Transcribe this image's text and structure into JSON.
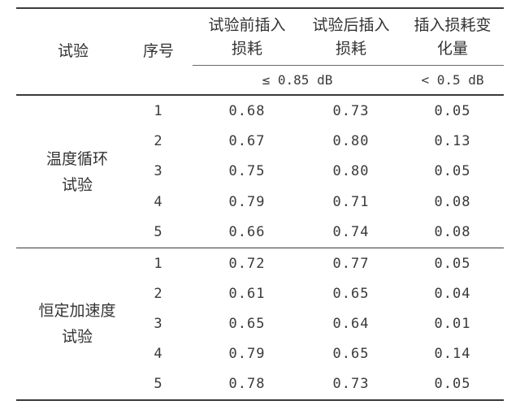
{
  "table": {
    "headers": {
      "test": "试验",
      "seq": "序号",
      "before_l1": "试验前插入",
      "before_l2": "损耗",
      "after_l1": "试验后插入",
      "after_l2": "损耗",
      "change_l1": "插入损耗变",
      "change_l2": "化量",
      "spec_loss": "≤ 0.85 dB",
      "spec_change": "< 0.5 dB"
    },
    "groups": [
      {
        "name_l1": "温度循环",
        "name_l2": "试验",
        "rows": [
          {
            "seq": "1",
            "before": "0.68",
            "after": "0.73",
            "change": "0.05"
          },
          {
            "seq": "2",
            "before": "0.67",
            "after": "0.80",
            "change": "0.13"
          },
          {
            "seq": "3",
            "before": "0.75",
            "after": "0.80",
            "change": "0.05"
          },
          {
            "seq": "4",
            "before": "0.79",
            "after": "0.71",
            "change": "0.08"
          },
          {
            "seq": "5",
            "before": "0.66",
            "after": "0.74",
            "change": "0.08"
          }
        ]
      },
      {
        "name_l1": "恒定加速度",
        "name_l2": "试验",
        "rows": [
          {
            "seq": "1",
            "before": "0.72",
            "after": "0.77",
            "change": "0.05"
          },
          {
            "seq": "2",
            "before": "0.61",
            "after": "0.65",
            "change": "0.04"
          },
          {
            "seq": "3",
            "before": "0.65",
            "after": "0.64",
            "change": "0.01"
          },
          {
            "seq": "4",
            "before": "0.79",
            "after": "0.65",
            "change": "0.14"
          },
          {
            "seq": "5",
            "before": "0.78",
            "after": "0.73",
            "change": "0.05"
          }
        ]
      }
    ]
  }
}
